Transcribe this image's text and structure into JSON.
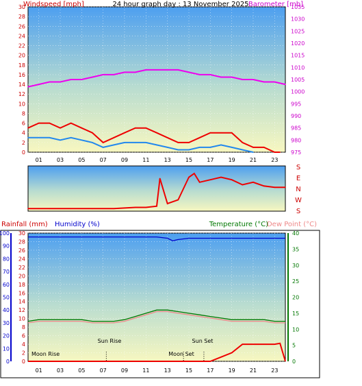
{
  "header": {
    "title": "24 hour graph day : 13 November 2025",
    "windspeed_label": "Windspeed [mph]",
    "barometer_label": "Barometer [mb]"
  },
  "bottom_header": {
    "rainfall_label": "Rainfall (mm)",
    "humidity_label": "Humidity (%)",
    "temperature_label": "Temperature (°C)",
    "dewpoint_label": "Dew Point (°C)"
  },
  "annotations": {
    "moon_rise": "Moon Rise",
    "sun_rise": "Sun Rise",
    "moon_set": "Moon Set",
    "sun_set": "Sun Set"
  },
  "colors": {
    "windspeed": "#ee0000",
    "gust": "#ee0000",
    "avg_wind": "#2288ee",
    "barometer": "#ee00ee",
    "direction": "#ee0000",
    "humidity": "#0000cc",
    "temperature": "#007700",
    "dewpoint": "#ee8888",
    "rain": "#ee0000"
  },
  "chart_data": [
    {
      "type": "line",
      "name": "wind-barometer",
      "x_ticks": [
        "01",
        "03",
        "05",
        "07",
        "09",
        "11",
        "13",
        "15",
        "17",
        "19",
        "21",
        "23"
      ],
      "y_left": {
        "label": "Windspeed [mph]",
        "ylim": [
          0,
          30
        ],
        "ticks": [
          0,
          2,
          4,
          6,
          8,
          10,
          12,
          14,
          16,
          18,
          20,
          22,
          24,
          26,
          28,
          30
        ]
      },
      "y_right": {
        "label": "Barometer [mb]",
        "ylim": [
          975,
          1035
        ],
        "ticks": [
          975,
          980,
          985,
          990,
          995,
          1000,
          1005,
          1010,
          1015,
          1020,
          1025,
          1030,
          1035
        ]
      },
      "series": [
        {
          "name": "Barometer [mb]",
          "axis": "right",
          "x": [
            0,
            1,
            2,
            3,
            4,
            5,
            6,
            7,
            8,
            9,
            10,
            11,
            12,
            13,
            14,
            15,
            16,
            17,
            18,
            19,
            20,
            21,
            22,
            23,
            24
          ],
          "values": [
            1002,
            1003,
            1004,
            1004,
            1005,
            1005,
            1006,
            1007,
            1007,
            1008,
            1008,
            1009,
            1009,
            1009,
            1009,
            1008,
            1007,
            1007,
            1006,
            1006,
            1005,
            1005,
            1004,
            1004,
            1003
          ]
        },
        {
          "name": "Windspeed [mph]",
          "axis": "left",
          "x": [
            0,
            1,
            2,
            3,
            4,
            5,
            6,
            7,
            8,
            9,
            10,
            11,
            12,
            13,
            14,
            15,
            16,
            17,
            18,
            19,
            20,
            21,
            22,
            23,
            23.5
          ],
          "values": [
            5,
            6,
            6,
            5,
            6,
            5,
            4,
            2,
            3,
            4,
            5,
            5,
            4,
            3,
            2,
            2,
            3,
            4,
            4,
            4,
            2,
            1,
            1,
            0,
            0
          ]
        },
        {
          "name": "Average wind",
          "axis": "left",
          "x": [
            0,
            1,
            2,
            3,
            4,
            5,
            6,
            7,
            8,
            9,
            10,
            11,
            12,
            13,
            14,
            15,
            16,
            17,
            18,
            19,
            20,
            21
          ],
          "values": [
            3,
            3,
            3,
            2.5,
            3,
            2.5,
            2,
            1,
            1.5,
            2,
            2,
            2,
            1.5,
            1,
            0.5,
            0.5,
            1,
            1,
            1.5,
            1,
            0.5,
            0
          ]
        }
      ]
    },
    {
      "type": "line",
      "name": "wind-direction",
      "y_ticks": [
        "S",
        "E",
        "N",
        "W",
        "S"
      ],
      "series": [
        {
          "name": "Direction",
          "x": [
            0,
            2,
            4,
            6,
            8,
            10,
            11,
            12,
            12.3,
            13,
            14,
            15,
            15.5,
            16,
            17,
            18,
            19,
            20,
            21,
            22,
            23,
            24
          ],
          "values": [
            20,
            20,
            20,
            20,
            20,
            30,
            30,
            40,
            260,
            60,
            90,
            270,
            300,
            230,
            250,
            270,
            250,
            210,
            230,
            200,
            190,
            190
          ]
        }
      ]
    },
    {
      "type": "line",
      "name": "rain-humidity-temperature",
      "x_ticks": [
        "01",
        "03",
        "05",
        "07",
        "09",
        "11",
        "13",
        "15",
        "17",
        "19",
        "21",
        "23"
      ],
      "y_left_rain": {
        "label": "Rainfall (mm)",
        "ylim": [
          0,
          30
        ],
        "ticks": [
          0,
          2,
          4,
          6,
          8,
          10,
          12,
          14,
          16,
          18,
          20,
          22,
          24,
          26,
          28,
          30
        ]
      },
      "y_left_humidity": {
        "label": "Humidity (%)",
        "ylim": [
          0,
          100
        ],
        "ticks": [
          0,
          10,
          20,
          30,
          40,
          50,
          60,
          70,
          80,
          90,
          100
        ]
      },
      "y_right": {
        "label": "Temperature (°C)",
        "ylim": [
          0,
          40
        ],
        "ticks": [
          0,
          5,
          10,
          15,
          20,
          25,
          30,
          35,
          40
        ]
      },
      "series": [
        {
          "name": "Humidity (%)",
          "axis": "humidity",
          "x": [
            0,
            4,
            8,
            12,
            13,
            13.5,
            14,
            15,
            16,
            20,
            24
          ],
          "values": [
            97,
            97,
            97,
            97,
            96,
            94,
            95,
            96,
            96,
            96,
            96
          ]
        },
        {
          "name": "Temperature (°C)",
          "axis": "right",
          "x": [
            0,
            1,
            2,
            3,
            4,
            5,
            6,
            7,
            8,
            9,
            10,
            11,
            12,
            13,
            14,
            15,
            16,
            17,
            18,
            19,
            20,
            21,
            22,
            23,
            24
          ],
          "values": [
            12.5,
            13,
            13,
            13,
            13,
            13,
            12.5,
            12.5,
            12.5,
            13,
            14,
            15,
            16,
            16,
            15.5,
            15,
            14.5,
            14,
            13.5,
            13,
            13,
            13,
            13,
            12.5,
            12.5
          ]
        },
        {
          "name": "Dew Point (°C)",
          "axis": "right",
          "x": [
            0,
            1,
            2,
            3,
            4,
            5,
            6,
            7,
            8,
            9,
            10,
            11,
            12,
            13,
            14,
            15,
            16,
            17,
            18,
            19,
            20,
            21,
            22,
            23,
            24
          ],
          "values": [
            12,
            12.5,
            12.5,
            12.5,
            12.5,
            12.5,
            12,
            12,
            12,
            12.5,
            13.5,
            14.5,
            15.5,
            15.5,
            15,
            14.5,
            14,
            13.5,
            13,
            12.5,
            12.5,
            12.5,
            12.5,
            12,
            12
          ]
        },
        {
          "name": "Rainfall (mm)",
          "axis": "rain",
          "x": [
            0,
            17,
            18,
            19,
            20,
            21,
            22,
            23,
            23.5,
            24
          ],
          "values": [
            0,
            0,
            1,
            2,
            4,
            4,
            4,
            4,
            4.2,
            0
          ]
        }
      ],
      "annotations": [
        {
          "label": "Moon Rise",
          "x": 0
        },
        {
          "label": "Sun Rise",
          "x": 7.3
        },
        {
          "label": "Moon Set",
          "x": 14.5
        },
        {
          "label": "Sun Set",
          "x": 16.4
        }
      ]
    }
  ]
}
